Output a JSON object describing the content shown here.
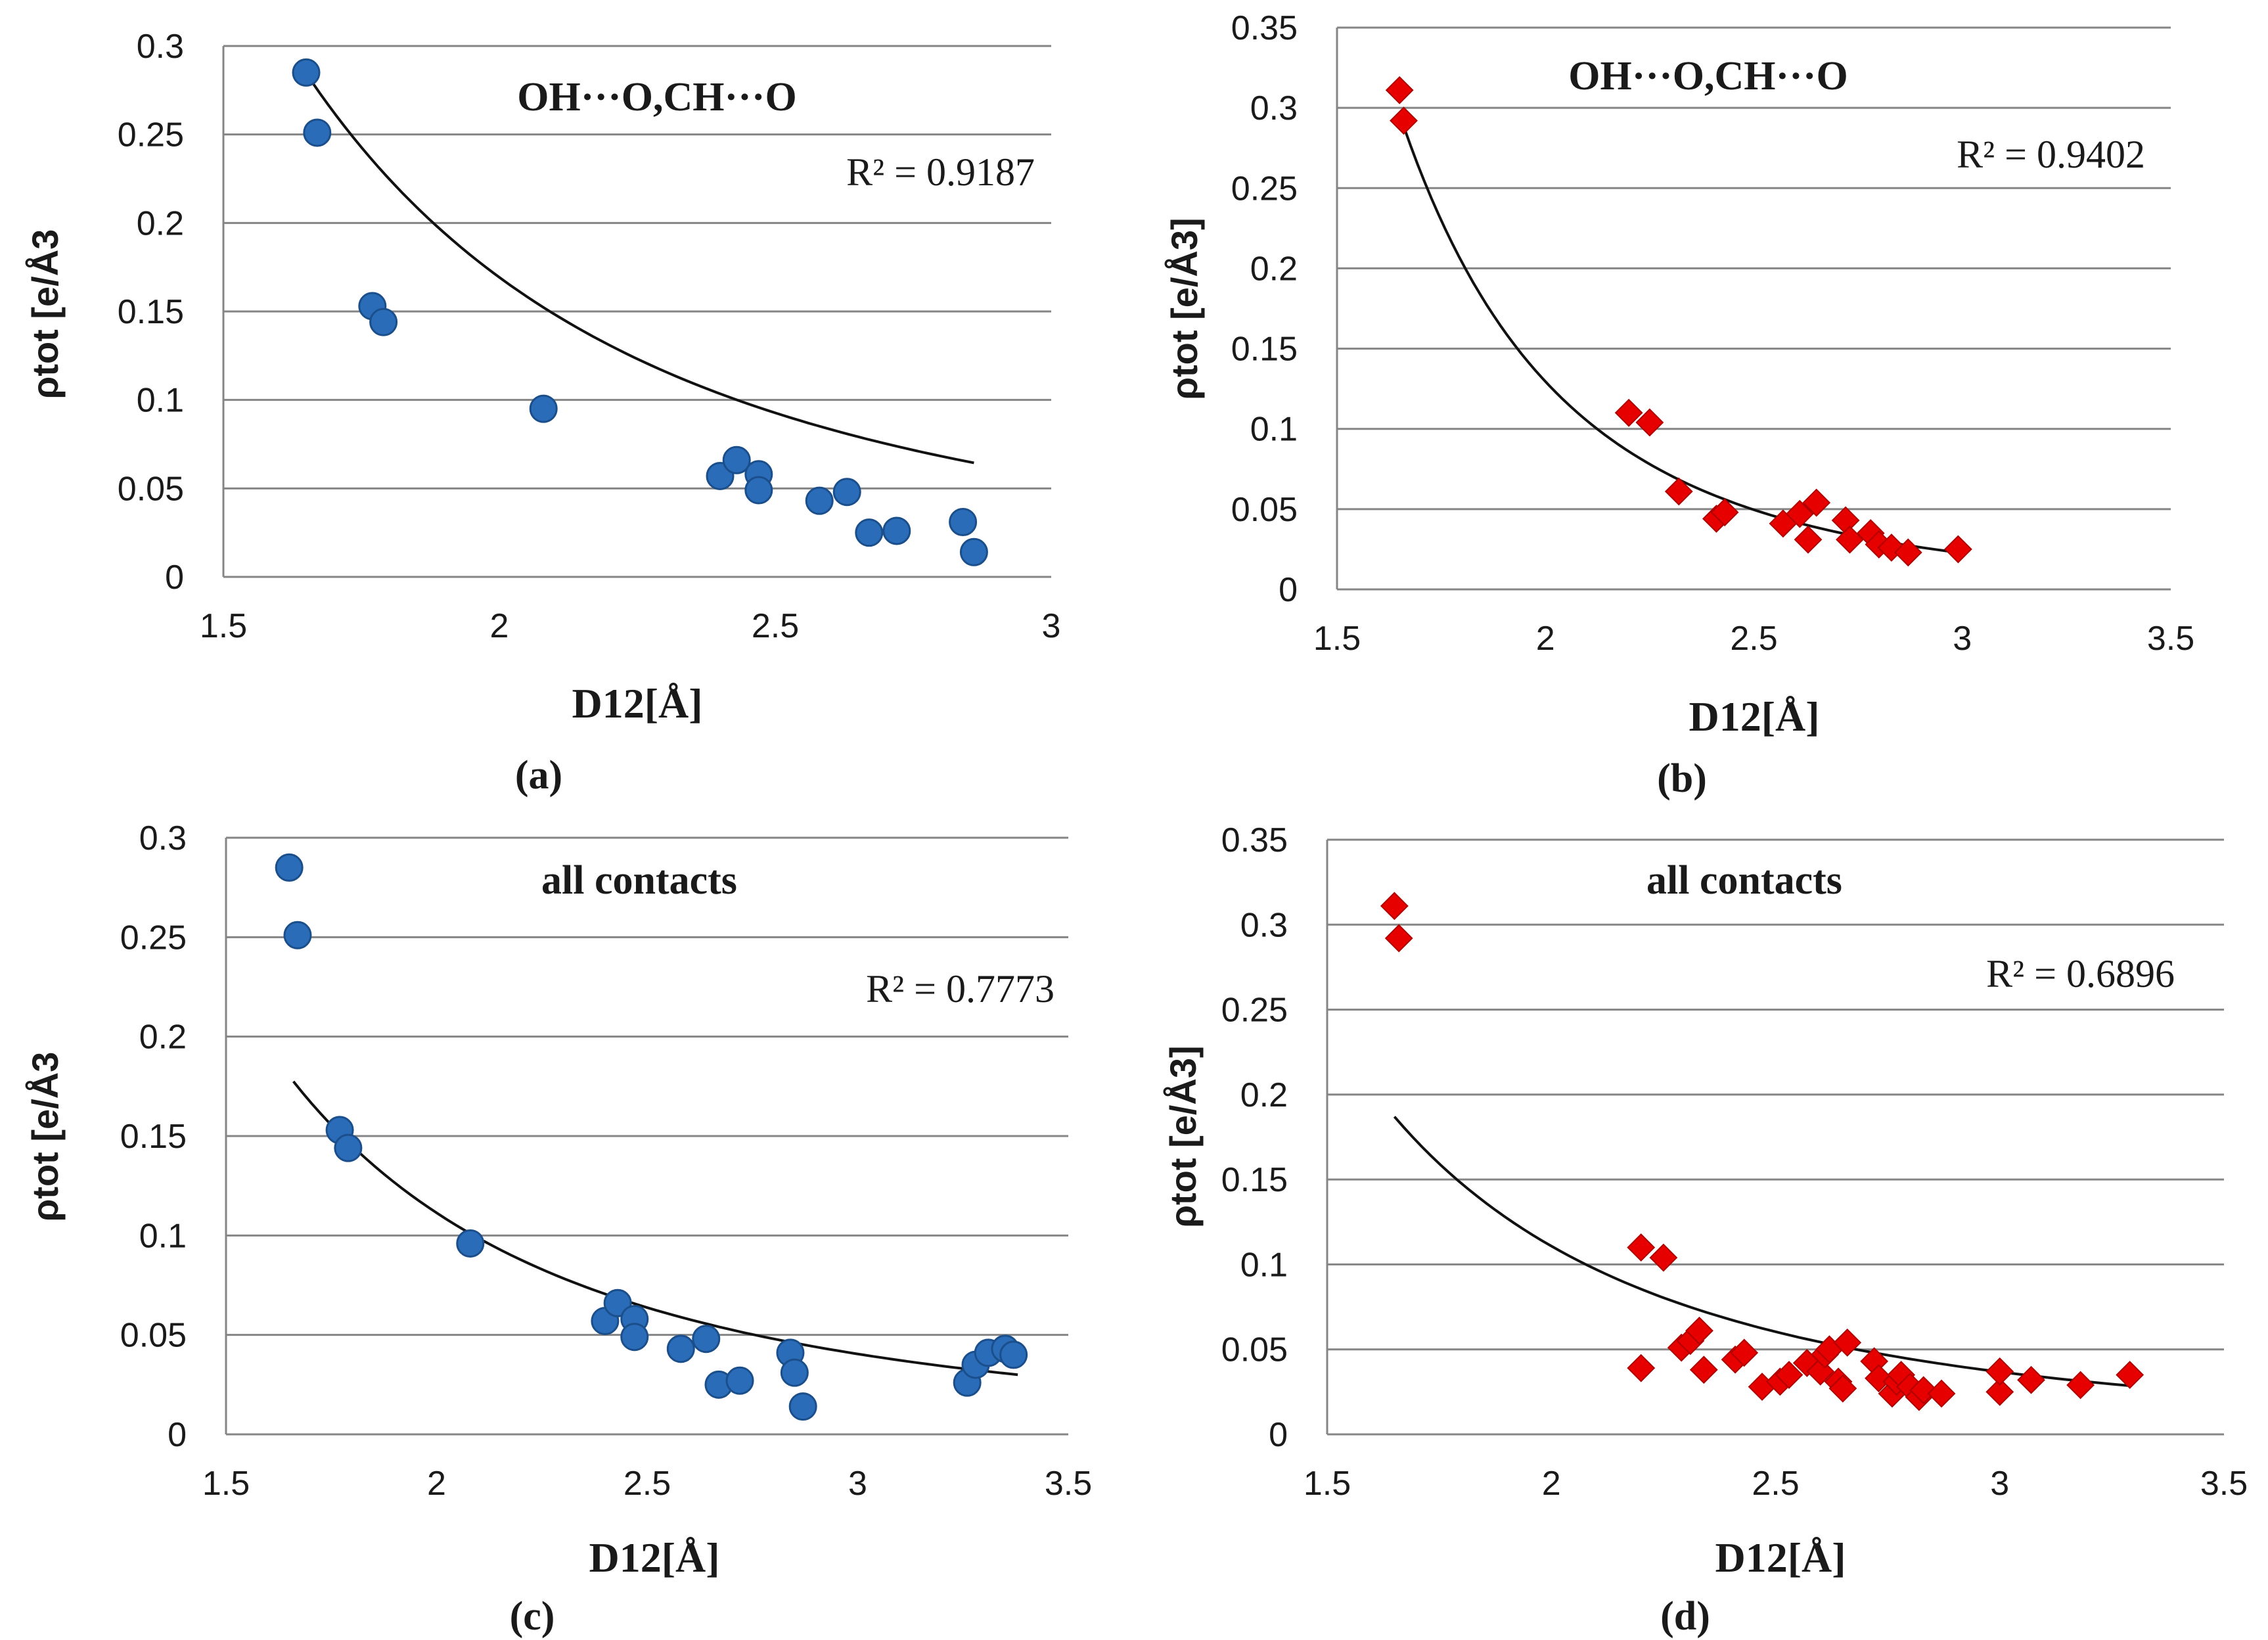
{
  "chart_data": [
    {
      "type": "scatter",
      "panel": "a",
      "caption": "(a)",
      "title": "OH···O,CH···O",
      "r2_label": "R² = 0.9187",
      "xlabel": "D12[Å]",
      "ylabel": "ρtot [e/Å3",
      "xlim": [
        1.5,
        3
      ],
      "ylim": [
        0,
        0.3
      ],
      "x_ticks": [
        "1.5",
        "2",
        "2.5",
        "3"
      ],
      "y_ticks": [
        "0",
        "0.05",
        "0.1",
        "0.15",
        "0.2",
        "0.25",
        "0.3"
      ],
      "grid": "horizontal",
      "marker": "circle",
      "color": "#2b6cb8",
      "trend": {
        "a": 1.1,
        "b": 2.7,
        "x_range": [
          1.66,
          2.86
        ]
      },
      "x": [
        1.65,
        1.67,
        1.77,
        1.79,
        2.08,
        2.4,
        2.43,
        2.47,
        2.47,
        2.58,
        2.63,
        2.67,
        2.72,
        2.84,
        2.86
      ],
      "y": [
        0.285,
        0.251,
        0.153,
        0.144,
        0.095,
        0.057,
        0.066,
        0.058,
        0.049,
        0.043,
        0.048,
        0.025,
        0.026,
        0.031,
        0.014
      ]
    },
    {
      "type": "scatter",
      "panel": "b",
      "caption": "(b)",
      "title": "OH···O,CH···O",
      "r2_label": "R² = 0.9402",
      "xlabel": "D12[Å]",
      "ylabel": "ρtot [e/Å3]",
      "xlim": [
        1.5,
        3.5
      ],
      "ylim": [
        0,
        0.35
      ],
      "x_ticks": [
        "1.5",
        "2",
        "2.5",
        "3",
        "3.5"
      ],
      "y_ticks": [
        "0",
        "0.05",
        "0.1",
        "0.15",
        "0.2",
        "0.25",
        "0.3",
        "0.35"
      ],
      "grid": "horizontal",
      "marker": "diamond",
      "color": "#e60000",
      "trend": {
        "a": 2.55,
        "b": 4.3,
        "x_range": [
          1.66,
          2.99
        ]
      },
      "x": [
        1.65,
        1.66,
        2.2,
        2.25,
        2.32,
        2.41,
        2.43,
        2.57,
        2.61,
        2.63,
        2.65,
        2.72,
        2.73,
        2.78,
        2.8,
        2.83,
        2.87,
        2.99
      ],
      "y": [
        0.311,
        0.292,
        0.11,
        0.104,
        0.061,
        0.044,
        0.048,
        0.041,
        0.047,
        0.031,
        0.054,
        0.043,
        0.031,
        0.035,
        0.028,
        0.026,
        0.023,
        0.025
      ]
    },
    {
      "type": "scatter",
      "panel": "c",
      "caption": "(c)",
      "title": "all contacts",
      "r2_label": "R² = 0.7773",
      "xlabel": "D12[Å]",
      "ylabel": "ρtot [e/Å3",
      "xlim": [
        1.5,
        3.5
      ],
      "ylim": [
        0,
        0.3
      ],
      "x_ticks": [
        "1.5",
        "2",
        "2.5",
        "3",
        "3.5"
      ],
      "y_ticks": [
        "0",
        "0.05",
        "0.1",
        "0.15",
        "0.2",
        "0.25",
        "0.3"
      ],
      "grid": "horizontal",
      "marker": "circle",
      "color": "#2b6cb8",
      "trend": {
        "a": 0.63,
        "b": 2.5,
        "x_range": [
          1.66,
          3.38
        ]
      },
      "x": [
        1.65,
        1.67,
        1.77,
        1.79,
        2.08,
        2.4,
        2.43,
        2.47,
        2.47,
        2.58,
        2.64,
        2.67,
        2.72,
        2.84,
        2.85,
        2.87,
        3.26,
        3.28,
        3.31,
        3.35,
        3.37
      ],
      "y": [
        0.285,
        0.251,
        0.153,
        0.144,
        0.096,
        0.057,
        0.066,
        0.058,
        0.049,
        0.043,
        0.048,
        0.025,
        0.027,
        0.041,
        0.031,
        0.014,
        0.026,
        0.035,
        0.041,
        0.043,
        0.04
      ]
    },
    {
      "type": "scatter",
      "panel": "d",
      "caption": "(d)",
      "title": "all contacts",
      "r2_label": "R² = 0.6896",
      "xlabel": "D12[Å]",
      "ylabel": "ρtot [e/Å3]",
      "xlim": [
        1.5,
        3.5
      ],
      "ylim": [
        0,
        0.35
      ],
      "x_ticks": [
        "1.5",
        "2",
        "2.5",
        "3",
        "3.5"
      ],
      "y_ticks": [
        "0",
        "0.05",
        "0.1",
        "0.15",
        "0.2",
        "0.25",
        "0.3",
        "0.35"
      ],
      "grid": "horizontal",
      "marker": "diamond",
      "color": "#e60000",
      "trend": {
        "a": 0.73,
        "b": 2.72,
        "x_range": [
          1.65,
          3.29
        ]
      },
      "x": [
        1.65,
        1.66,
        2.2,
        2.2,
        2.25,
        2.29,
        2.31,
        2.33,
        2.34,
        2.41,
        2.43,
        2.47,
        2.51,
        2.53,
        2.57,
        2.6,
        2.61,
        2.62,
        2.64,
        2.65,
        2.66,
        2.72,
        2.73,
        2.76,
        2.77,
        2.78,
        2.8,
        2.82,
        2.83,
        2.87,
        3.0,
        3.0,
        3.07,
        3.18,
        3.29
      ],
      "y": [
        0.311,
        0.292,
        0.11,
        0.039,
        0.104,
        0.051,
        0.055,
        0.061,
        0.038,
        0.044,
        0.048,
        0.028,
        0.031,
        0.035,
        0.042,
        0.037,
        0.047,
        0.05,
        0.031,
        0.027,
        0.054,
        0.043,
        0.033,
        0.024,
        0.031,
        0.035,
        0.028,
        0.022,
        0.026,
        0.024,
        0.025,
        0.037,
        0.032,
        0.029,
        0.035
      ]
    }
  ]
}
